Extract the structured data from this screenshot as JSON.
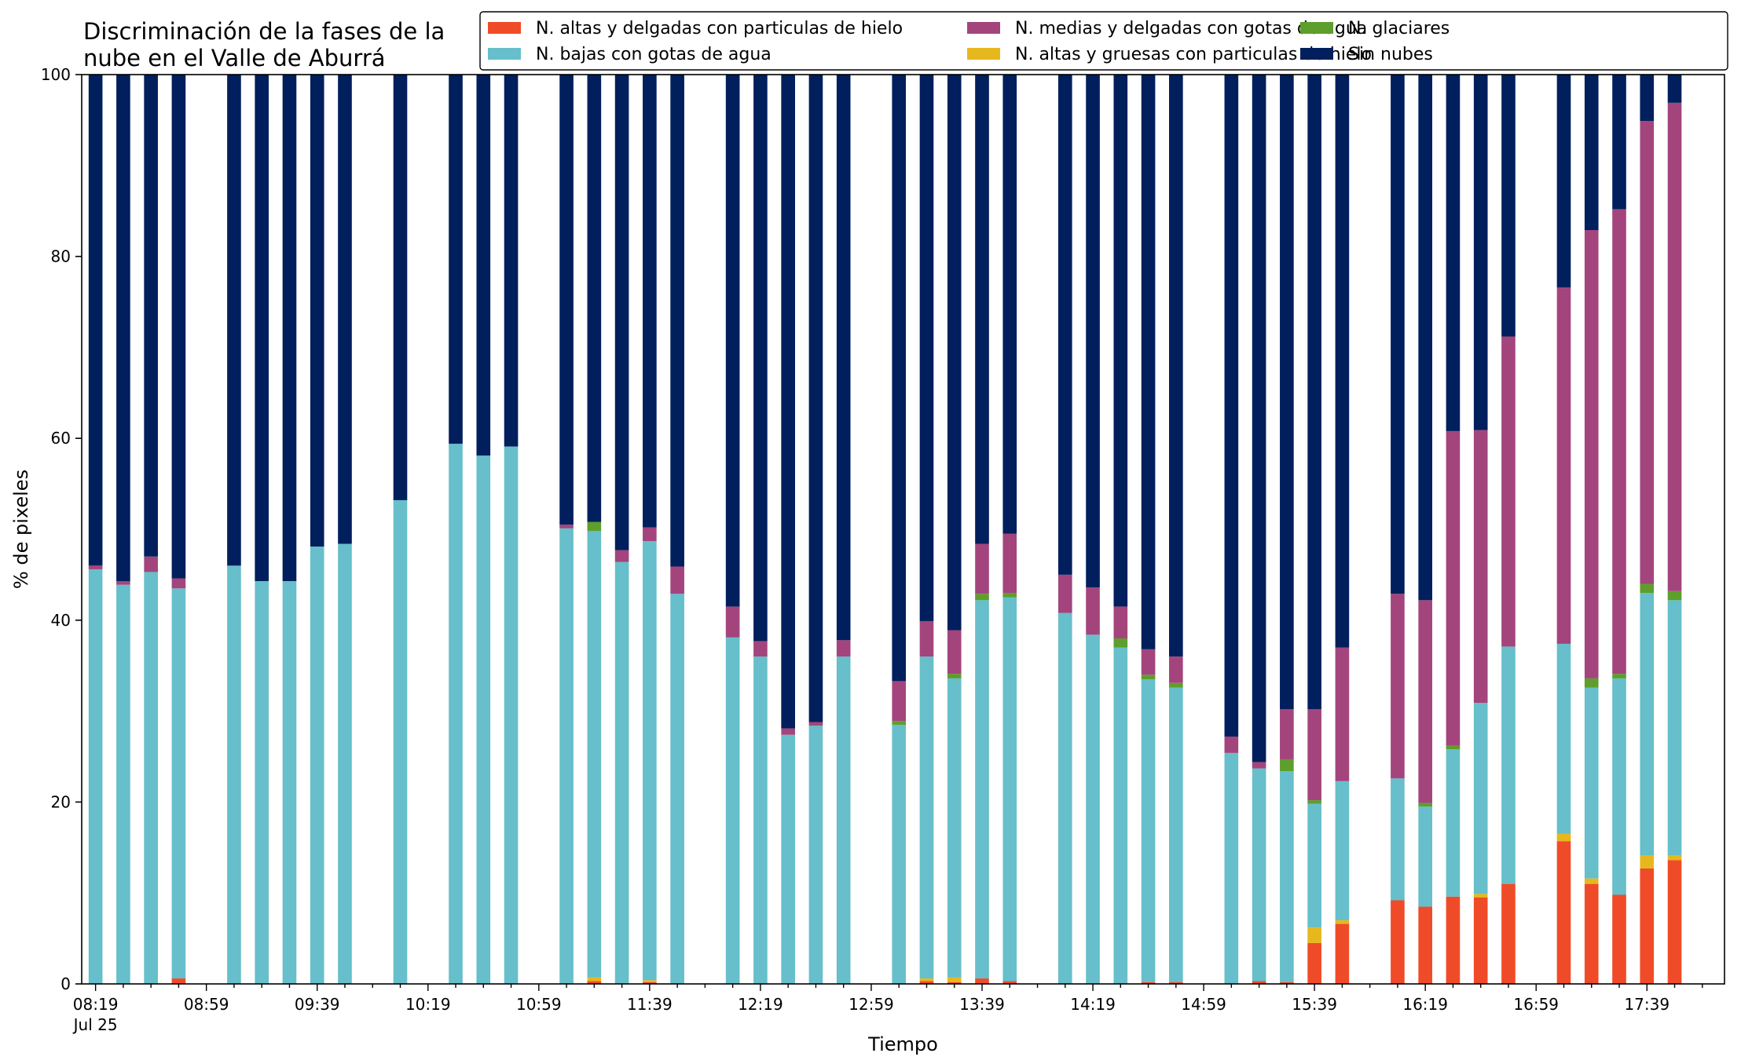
{
  "chart_data": {
    "type": "bar",
    "stacked": true,
    "title": "Discriminación de la fases de la nube en el Valle de Aburrá",
    "title_lines": [
      "Discriminación de la fases de la",
      "nube en el Valle de Aburrá"
    ],
    "xlabel": "Tiempo",
    "ylabel": "% de pixeles",
    "ylim": [
      0,
      100
    ],
    "yticks": [
      0,
      20,
      40,
      60,
      80,
      100
    ],
    "xlim": [
      -0.5,
      58.8
    ],
    "major_ticks": [
      {
        "i": 0,
        "label": "08:19",
        "sub": "Jul 25"
      },
      {
        "i": 4,
        "label": "08:59"
      },
      {
        "i": 8,
        "label": "09:39"
      },
      {
        "i": 12,
        "label": "10:19"
      },
      {
        "i": 16,
        "label": "10:59"
      },
      {
        "i": 20,
        "label": "11:39"
      },
      {
        "i": 24,
        "label": "12:19"
      },
      {
        "i": 28,
        "label": "12:59"
      },
      {
        "i": 32,
        "label": "13:39"
      },
      {
        "i": 36,
        "label": "14:19"
      },
      {
        "i": 40,
        "label": "14:59"
      },
      {
        "i": 44,
        "label": "15:39"
      },
      {
        "i": 48,
        "label": "16:19"
      },
      {
        "i": 52,
        "label": "16:59"
      },
      {
        "i": 56,
        "label": "17:39"
      }
    ],
    "grid": false,
    "legend_position": "top-right",
    "legend_columns": 3,
    "legend_order": [
      0,
      2,
      4,
      1,
      3,
      5
    ],
    "series": [
      {
        "name": "N. altas y delgadas con particulas de hielo",
        "color": "#f04b28"
      },
      {
        "name": "N. altas y gruesas con particulas de hielo",
        "color": "#e6b81e"
      },
      {
        "name": "N. bajas con gotas de agua",
        "color": "#66bfca"
      },
      {
        "name": "N. glaciares",
        "color": "#5e9e2c"
      },
      {
        "name": "N. medias y delgadas con gotas de agua",
        "color": "#a3457c"
      },
      {
        "name": "Sin nubes",
        "color": "#001f5c"
      }
    ],
    "bars": [
      {
        "i": 0,
        "v": [
          0,
          0,
          45.6,
          0,
          0.4,
          54
        ]
      },
      {
        "i": 1,
        "v": [
          0,
          0,
          43.9,
          0,
          0.4,
          55.7
        ]
      },
      {
        "i": 2,
        "v": [
          0,
          0,
          45.3,
          0,
          1.7,
          53
        ]
      },
      {
        "i": 3,
        "v": [
          0.6,
          0,
          42.9,
          0,
          1.1,
          55.4
        ]
      },
      {
        "i": 5,
        "v": [
          0,
          0,
          46,
          0,
          0,
          54
        ]
      },
      {
        "i": 6,
        "v": [
          0,
          0,
          44.3,
          0,
          0,
          55.7
        ]
      },
      {
        "i": 7,
        "v": [
          0,
          0,
          44.3,
          0,
          0,
          55.7
        ]
      },
      {
        "i": 8,
        "v": [
          0,
          0,
          48.1,
          0,
          0,
          51.9
        ]
      },
      {
        "i": 9,
        "v": [
          0,
          0,
          48.4,
          0,
          0,
          51.6
        ]
      },
      {
        "i": 11,
        "v": [
          0,
          0,
          53.2,
          0,
          0,
          46.8
        ]
      },
      {
        "i": 13,
        "v": [
          0,
          0,
          59.4,
          0,
          0,
          40.6
        ]
      },
      {
        "i": 14,
        "v": [
          0,
          0,
          58.1,
          0,
          0,
          41.9
        ]
      },
      {
        "i": 15,
        "v": [
          0,
          0,
          59.1,
          0,
          0,
          40.9
        ]
      },
      {
        "i": 17,
        "v": [
          0,
          0,
          50.1,
          0,
          0.4,
          49.5
        ]
      },
      {
        "i": 18,
        "v": [
          0.3,
          0.4,
          49.1,
          1,
          0,
          49.2
        ]
      },
      {
        "i": 19,
        "v": [
          0,
          0,
          46.4,
          0,
          1.3,
          52.3
        ]
      },
      {
        "i": 20,
        "v": [
          0.2,
          0.2,
          48.3,
          0,
          1.5,
          49.8
        ]
      },
      {
        "i": 21,
        "v": [
          0,
          0,
          42.9,
          0,
          3,
          54.1
        ]
      },
      {
        "i": 23,
        "v": [
          0,
          0,
          38.1,
          0,
          3.4,
          58.5
        ]
      },
      {
        "i": 24,
        "v": [
          0,
          0,
          36,
          0,
          1.7,
          62.3
        ]
      },
      {
        "i": 25,
        "v": [
          0,
          0,
          27.4,
          0,
          0.7,
          71.9
        ]
      },
      {
        "i": 26,
        "v": [
          0,
          0,
          28.4,
          0,
          0.4,
          71.2
        ]
      },
      {
        "i": 27,
        "v": [
          0,
          0,
          36,
          0,
          1.8,
          62.2
        ]
      },
      {
        "i": 29,
        "v": [
          0,
          0,
          28.5,
          0.4,
          4.4,
          66.7
        ]
      },
      {
        "i": 30,
        "v": [
          0.3,
          0.3,
          35.4,
          0,
          3.9,
          60.1
        ]
      },
      {
        "i": 31,
        "v": [
          0.2,
          0.5,
          32.9,
          0.5,
          4.8,
          61.1
        ]
      },
      {
        "i": 32,
        "v": [
          0.6,
          0,
          41.6,
          0.7,
          5.5,
          51.6
        ]
      },
      {
        "i": 33,
        "v": [
          0.3,
          0,
          42.2,
          0.5,
          6.5,
          50.5
        ]
      },
      {
        "i": 35,
        "v": [
          0,
          0,
          40.8,
          0,
          4.2,
          55
        ]
      },
      {
        "i": 36,
        "v": [
          0,
          0,
          38.4,
          0,
          5.2,
          56.4
        ]
      },
      {
        "i": 37,
        "v": [
          0,
          0,
          37,
          1,
          3.5,
          58.5
        ]
      },
      {
        "i": 38,
        "v": [
          0.2,
          0,
          33.3,
          0.5,
          2.8,
          63.2
        ]
      },
      {
        "i": 39,
        "v": [
          0.2,
          0,
          32.4,
          0.5,
          2.9,
          64
        ]
      },
      {
        "i": 41,
        "v": [
          0,
          0,
          25.4,
          0,
          1.8,
          72.8
        ]
      },
      {
        "i": 42,
        "v": [
          0.3,
          0,
          23.4,
          0,
          0.7,
          75.6
        ]
      },
      {
        "i": 43,
        "v": [
          0.2,
          0,
          23.2,
          1.3,
          5.5,
          69.8
        ]
      },
      {
        "i": 44,
        "v": [
          4.5,
          1.7,
          13.6,
          0.4,
          10,
          69.8
        ]
      },
      {
        "i": 45,
        "v": [
          6.6,
          0.4,
          15.3,
          0,
          14.7,
          63
        ]
      },
      {
        "i": 47,
        "v": [
          9.2,
          0,
          13.4,
          0,
          20.3,
          57.1
        ]
      },
      {
        "i": 48,
        "v": [
          8.5,
          0,
          11,
          0.4,
          22.3,
          57.8
        ]
      },
      {
        "i": 49,
        "v": [
          9.6,
          0,
          16.2,
          0.4,
          34.6,
          39.2
        ]
      },
      {
        "i": 50,
        "v": [
          9.5,
          0.4,
          21,
          0,
          30,
          39.1
        ]
      },
      {
        "i": 51,
        "v": [
          11,
          0,
          26.1,
          0,
          34.1,
          28.8
        ]
      },
      {
        "i": 53,
        "v": [
          15.7,
          0.8,
          20.9,
          0,
          39.2,
          23.4
        ]
      },
      {
        "i": 54,
        "v": [
          11,
          0.6,
          21,
          1,
          49.3,
          17.1
        ]
      },
      {
        "i": 55,
        "v": [
          9.8,
          0,
          23.8,
          0.5,
          51.1,
          14.8
        ]
      },
      {
        "i": 56,
        "v": [
          12.7,
          1.4,
          28.9,
          1,
          50.9,
          5.1
        ]
      },
      {
        "i": 57,
        "v": [
          13.6,
          0.5,
          28.1,
          1,
          53.7,
          3.1
        ]
      }
    ]
  }
}
